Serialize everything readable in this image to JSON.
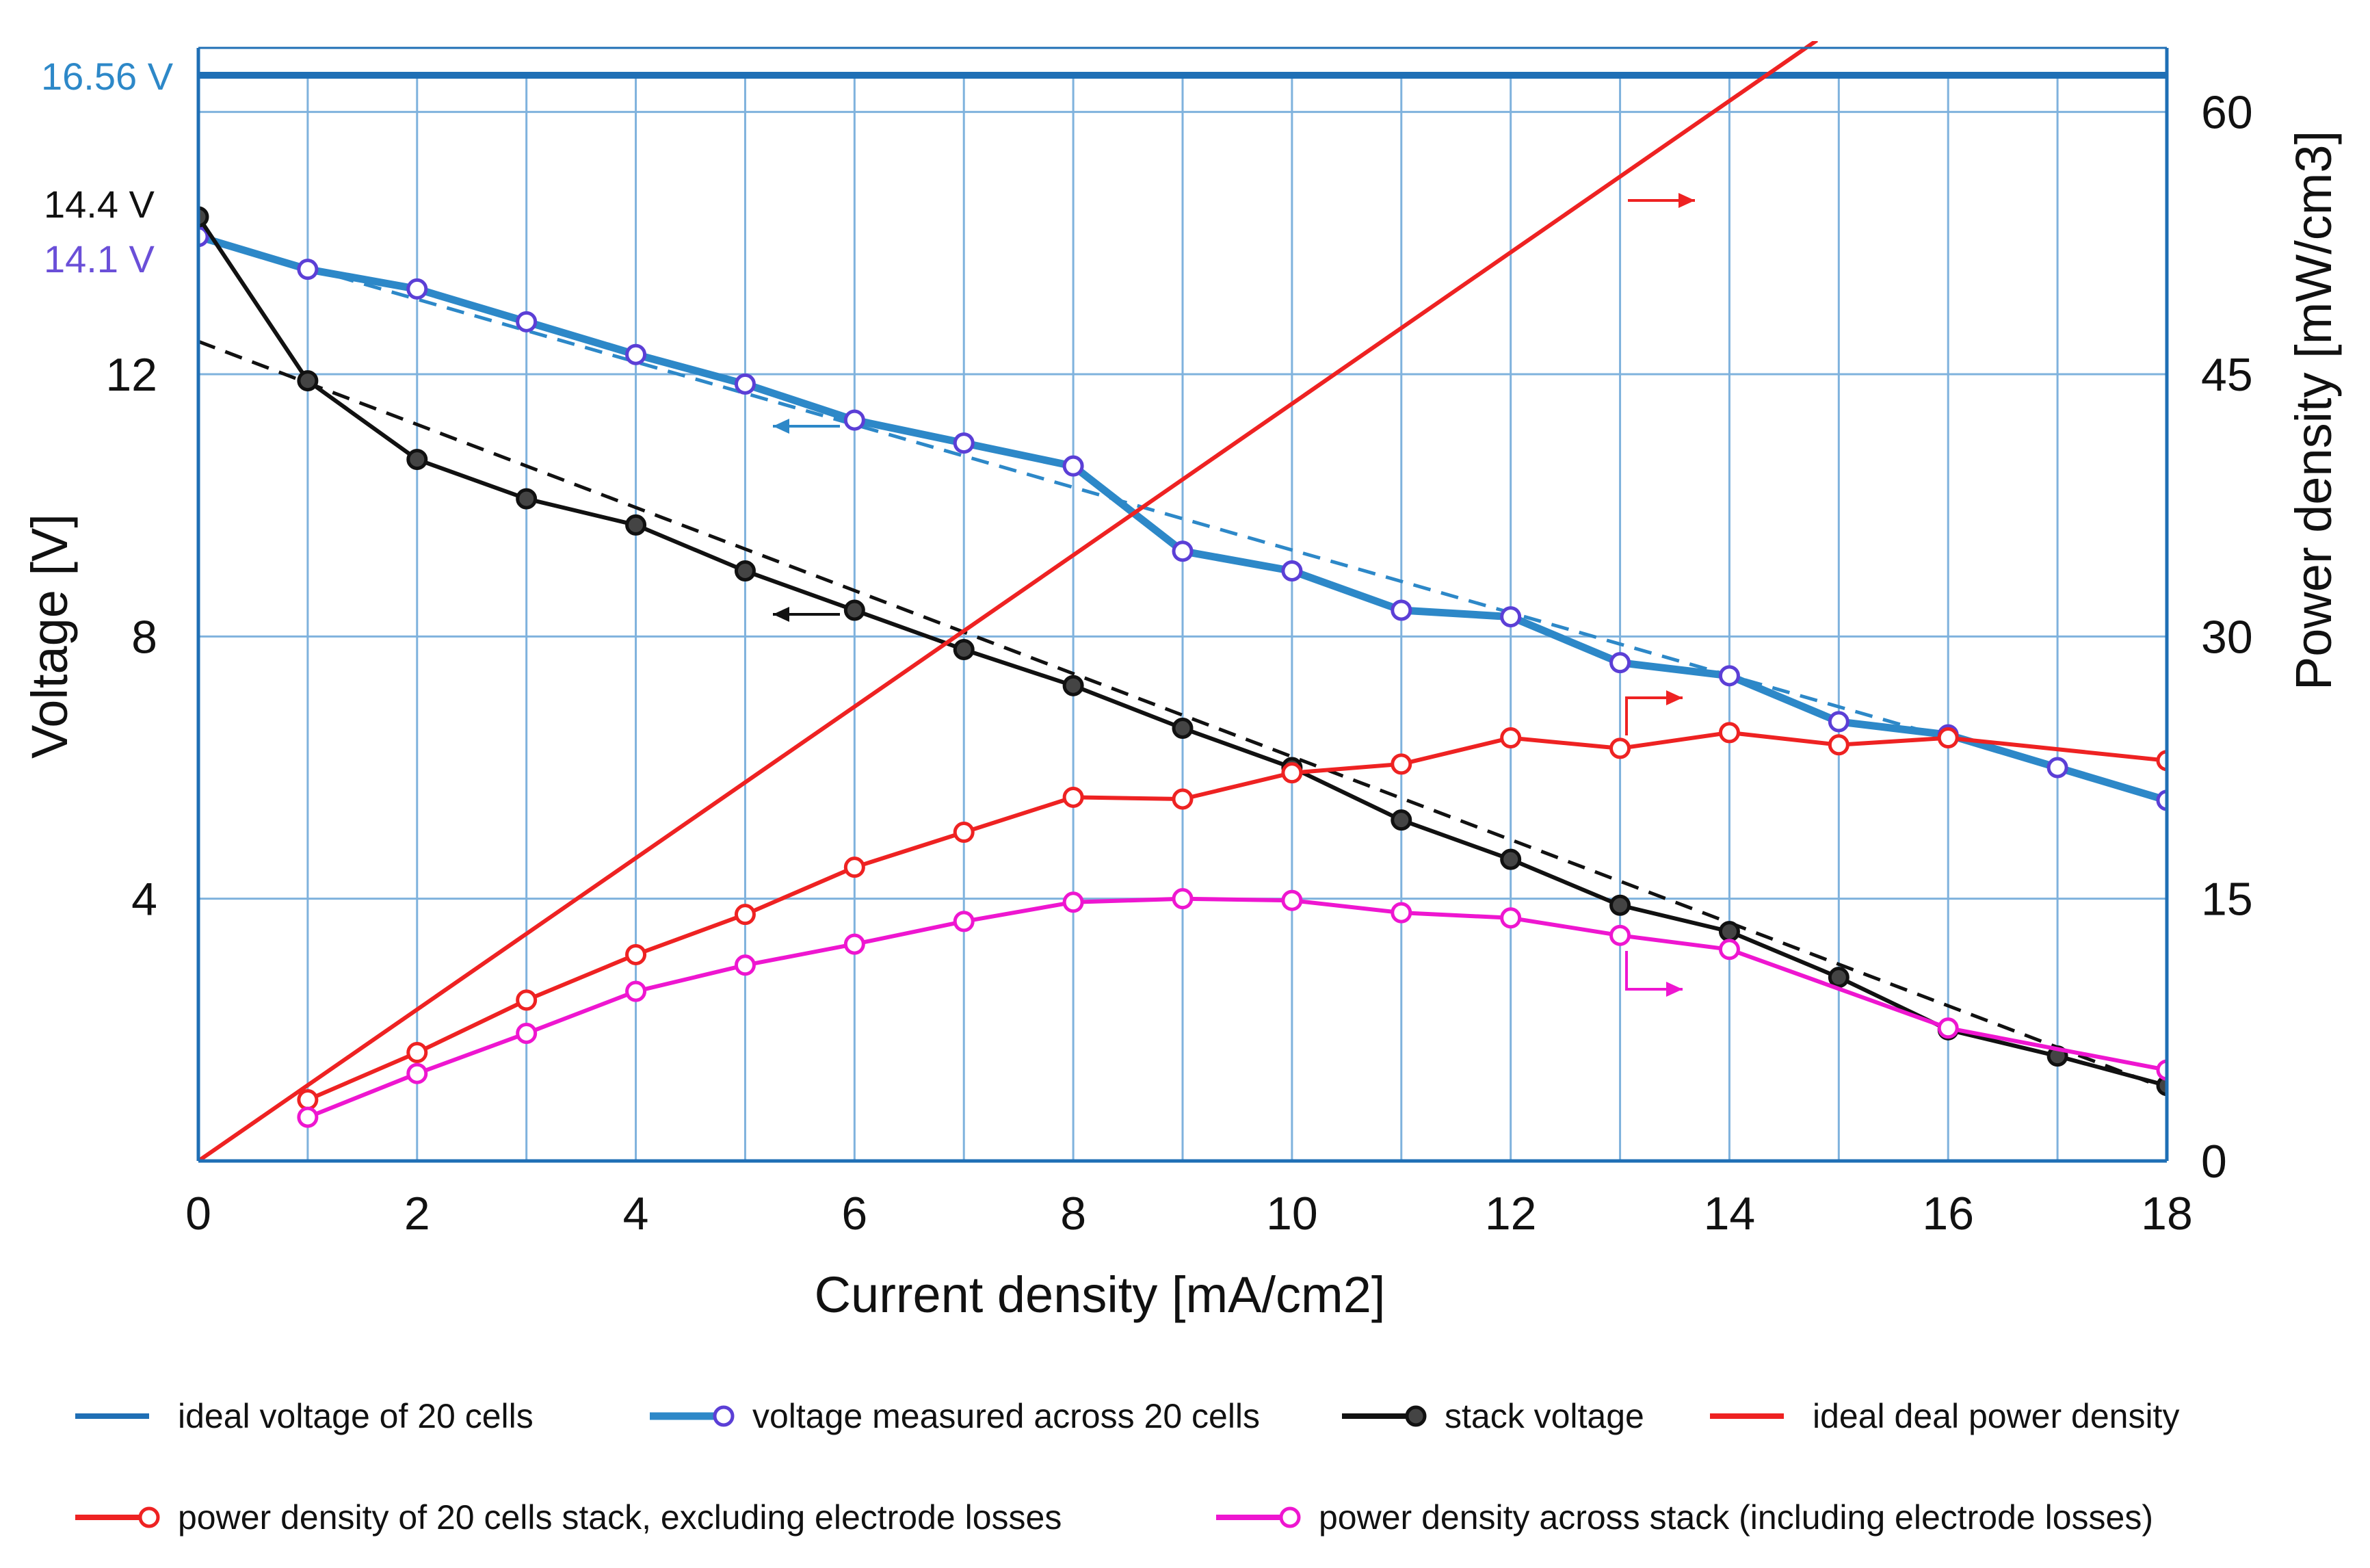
{
  "chart_data": {
    "type": "line",
    "xlabel": "Current density  [mA/cm2]",
    "ylabel_left": "Voltage [V]",
    "ylabel_right": "Power density  [mW/cm3]",
    "xlim": [
      0,
      18
    ],
    "ylim_left": [
      0,
      16.56
    ],
    "ylim_right": [
      0,
      62.1
    ],
    "x_ticks": [
      0,
      2,
      4,
      6,
      8,
      10,
      12,
      14,
      16,
      18
    ],
    "y_left_ticks": [
      4,
      8,
      12
    ],
    "y_right_ticks": [
      0,
      15,
      30,
      45,
      60
    ],
    "grid": true,
    "legend_position": "bottom",
    "annotations": {
      "ideal_voltage_label": "16.56 V",
      "stack_start_label": "14.4 V",
      "measured_start_label": "14.1 V"
    },
    "colors": {
      "ideal_voltage": "#1f6fb5",
      "measured": "#2d88c8",
      "marker_measured": "#5b3fd6",
      "stack": "#111111",
      "ideal_power": "#ee2222",
      "power_excl": "#ee2222",
      "power_incl": "#ee16d0",
      "grid": "#7fb2dd",
      "frame": "#1f6fb5"
    },
    "series": [
      {
        "name": "ideal voltage of 20 cells",
        "axis": "left",
        "x": [
          0,
          18
        ],
        "y": [
          16.56,
          16.56
        ]
      },
      {
        "name": "voltage measured across 20 cells",
        "axis": "left",
        "x": [
          0,
          1,
          2,
          3,
          4,
          5,
          6,
          7,
          8,
          9,
          10,
          11,
          12,
          13,
          14,
          15,
          16,
          17,
          18
        ],
        "y": [
          14.1,
          13.6,
          13.3,
          12.8,
          12.3,
          11.85,
          11.3,
          10.95,
          10.6,
          9.3,
          9.0,
          8.4,
          8.3,
          7.6,
          7.4,
          6.7,
          6.5,
          6.0,
          5.5
        ]
      },
      {
        "name": "stack voltage",
        "axis": "left",
        "x": [
          0,
          1,
          2,
          3,
          4,
          5,
          6,
          7,
          8,
          9,
          10,
          11,
          12,
          13,
          14,
          15,
          16,
          17,
          18
        ],
        "y": [
          14.4,
          11.9,
          10.7,
          10.1,
          9.7,
          9.0,
          8.4,
          7.8,
          7.25,
          6.6,
          6.0,
          5.2,
          4.6,
          3.9,
          3.5,
          2.8,
          2.0,
          1.6,
          1.15
        ]
      },
      {
        "name": "ideal deal power density",
        "axis": "right",
        "x": [
          0,
          14.8
        ],
        "y": [
          0,
          64.1
        ]
      },
      {
        "name": "power density of 20 cells stack, excluding  electrode losses",
        "axis": "right",
        "x": [
          1,
          2,
          3,
          4,
          5,
          6,
          7,
          8,
          9,
          10,
          11,
          12,
          13,
          14,
          15,
          16,
          18
        ],
        "y": [
          3.5,
          6.2,
          9.2,
          11.8,
          14.1,
          16.8,
          18.8,
          20.8,
          20.7,
          22.2,
          22.7,
          24.2,
          23.6,
          24.5,
          23.8,
          24.2,
          22.9
        ]
      },
      {
        "name": "power density across stack (including  electrode losses)",
        "axis": "right",
        "x": [
          1,
          2,
          3,
          4,
          5,
          6,
          7,
          8,
          9,
          10,
          11,
          12,
          13,
          14,
          16,
          18
        ],
        "y": [
          2.5,
          5.0,
          7.3,
          9.7,
          11.2,
          12.4,
          13.7,
          14.8,
          15.0,
          14.9,
          14.2,
          13.9,
          12.9,
          12.1,
          7.6,
          5.2
        ]
      }
    ],
    "trendlines": [
      {
        "of": "voltage measured across 20 cells",
        "x": [
          0,
          16
        ],
        "y": [
          14.1,
          6.45
        ]
      },
      {
        "of": "stack voltage",
        "x": [
          0,
          18
        ],
        "y": [
          12.5,
          1.1
        ]
      }
    ],
    "legend": [
      "ideal voltage of 20 cells",
      "voltage measured across 20 cells",
      "stack voltage",
      "ideal deal power density",
      "power density of 20 cells stack, excluding  electrode losses",
      "power density across stack (including  electrode losses)"
    ]
  }
}
